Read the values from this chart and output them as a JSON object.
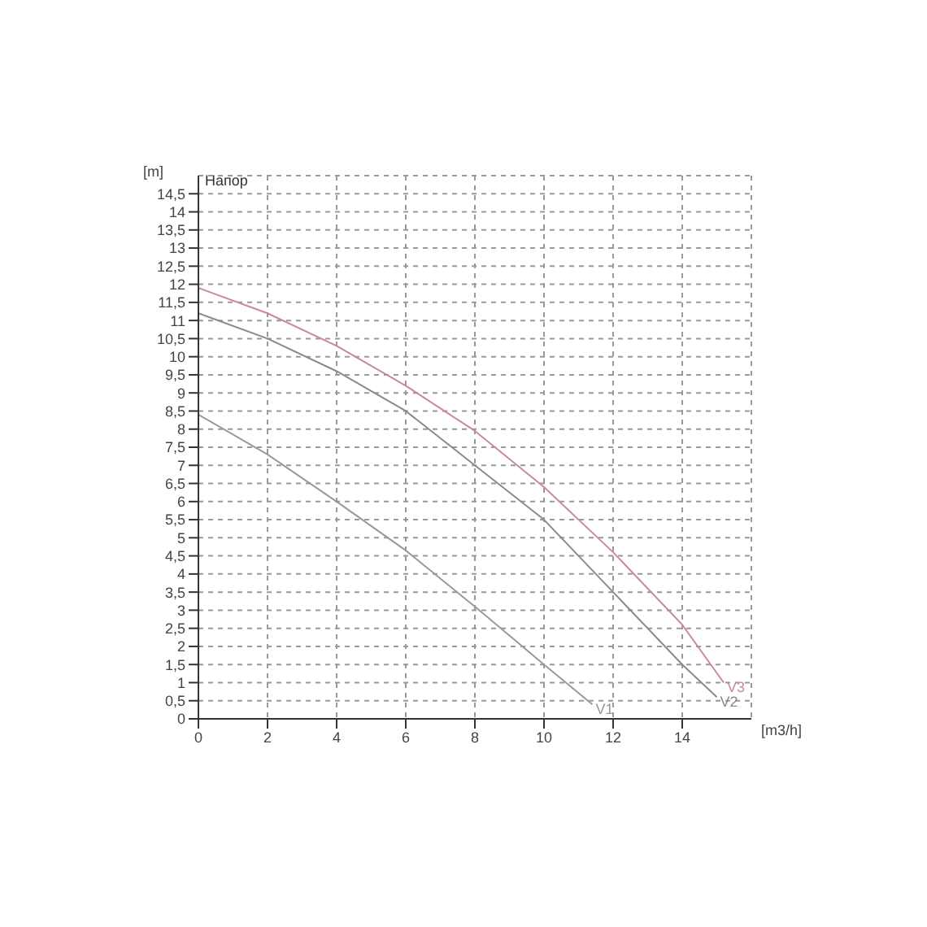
{
  "chart_data": {
    "type": "line",
    "title": "Напор",
    "xlabel": "[m3/h]",
    "ylabel": "[m]",
    "xlim": [
      0,
      16
    ],
    "xticks": [
      0,
      2,
      4,
      6,
      8,
      10,
      12,
      14
    ],
    "ylim": [
      0,
      15
    ],
    "yticks": [
      0,
      {
        "value": 0.5,
        "label": "0,5"
      },
      1,
      {
        "value": 1.5,
        "label": "1,5"
      },
      2,
      {
        "value": 2.5,
        "label": "2,5"
      },
      3,
      {
        "value": 3.5,
        "label": "3,5"
      },
      4,
      {
        "value": 4.5,
        "label": "4,5"
      },
      5,
      {
        "value": 5.5,
        "label": "5,5"
      },
      6,
      {
        "value": 6.5,
        "label": "6,5"
      },
      7,
      {
        "value": 7.5,
        "label": "7,5"
      },
      8,
      {
        "value": 8.5,
        "label": "8,5"
      },
      9,
      {
        "value": 9.5,
        "label": "9,5"
      },
      10,
      {
        "value": 10.5,
        "label": "10,5"
      },
      11,
      {
        "value": 11.5,
        "label": "11,5"
      },
      12,
      {
        "value": 12.5,
        "label": "12,5"
      },
      13,
      {
        "value": 13.5,
        "label": "13,5"
      },
      14,
      {
        "value": 14.5,
        "label": "14,5"
      }
    ],
    "grid": true,
    "marker": "none",
    "line_style": "solid",
    "series": [
      {
        "name": "V1",
        "color": "#999999",
        "x": [
          0,
          2,
          4,
          6,
          8,
          10,
          11.4
        ],
        "values": [
          8.4,
          7.3,
          6.0,
          4.65,
          3.1,
          1.5,
          0.4
        ]
      },
      {
        "name": "V2",
        "color": "#8a8a8a",
        "x": [
          0,
          2,
          4,
          6,
          8,
          10,
          12,
          14,
          15
        ],
        "values": [
          11.2,
          10.5,
          9.6,
          8.5,
          7.0,
          5.5,
          3.5,
          1.5,
          0.6
        ]
      },
      {
        "name": "V3",
        "color": "#c98a93",
        "x": [
          0,
          2,
          4,
          6,
          8,
          10,
          12,
          14,
          15.2
        ],
        "values": [
          11.9,
          11.2,
          10.3,
          9.2,
          7.95,
          6.4,
          4.6,
          2.6,
          1.0
        ]
      }
    ]
  }
}
